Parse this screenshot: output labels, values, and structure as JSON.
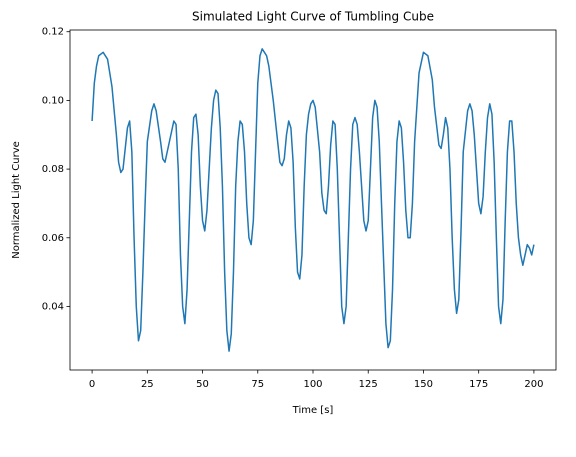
{
  "chart_data": {
    "type": "line",
    "title": "Simulated Light Curve of Tumbling Cube",
    "xlabel": "Time [s]",
    "ylabel": "Normalized Light Curve",
    "color": "#1f77b4",
    "x": [
      0,
      1,
      2,
      3,
      5,
      7,
      9,
      11,
      12,
      13,
      14,
      16,
      17,
      18,
      19,
      20,
      21,
      22,
      23,
      24,
      25,
      27,
      28,
      29,
      31,
      32,
      33,
      35,
      37,
      38,
      39,
      40,
      41,
      42,
      43,
      44,
      45,
      46,
      47,
      48,
      49,
      50,
      51,
      52,
      53,
      54,
      55,
      56,
      57,
      58,
      59,
      60,
      61,
      62,
      63,
      64,
      65,
      66,
      67,
      68,
      69,
      70,
      71,
      72,
      73,
      74,
      75,
      76,
      77,
      78,
      79,
      80,
      82,
      84,
      85,
      86,
      87,
      88,
      89,
      90,
      91,
      92,
      93,
      94,
      95,
      96,
      97,
      98,
      99,
      100,
      101,
      103,
      104,
      105,
      106,
      107,
      108,
      109,
      110,
      111,
      112,
      113,
      114,
      115,
      116,
      117,
      118,
      119,
      120,
      121,
      122,
      123,
      124,
      125,
      126,
      127,
      128,
      129,
      130,
      131,
      133,
      134,
      135,
      136,
      137,
      138,
      139,
      140,
      141,
      142,
      143,
      144,
      145,
      146,
      148,
      150,
      152,
      154,
      155,
      157,
      158,
      159,
      160,
      161,
      162,
      163,
      164,
      165,
      166,
      167,
      168,
      170,
      171,
      172,
      173,
      174,
      175,
      176,
      177,
      178,
      179,
      180,
      181,
      182,
      183,
      184,
      185,
      186,
      187,
      188,
      189,
      190,
      191,
      192,
      193,
      194,
      195,
      196,
      197,
      198,
      199,
      200
    ],
    "values": [
      0.094,
      0.105,
      0.11,
      0.113,
      0.114,
      0.112,
      0.104,
      0.09,
      0.082,
      0.079,
      0.08,
      0.092,
      0.094,
      0.085,
      0.06,
      0.04,
      0.03,
      0.033,
      0.05,
      0.07,
      0.088,
      0.097,
      0.099,
      0.097,
      0.088,
      0.083,
      0.082,
      0.088,
      0.094,
      0.093,
      0.08,
      0.055,
      0.04,
      0.035,
      0.045,
      0.065,
      0.085,
      0.095,
      0.096,
      0.09,
      0.075,
      0.065,
      0.062,
      0.068,
      0.08,
      0.092,
      0.1,
      0.103,
      0.102,
      0.092,
      0.075,
      0.05,
      0.033,
      0.027,
      0.032,
      0.05,
      0.075,
      0.088,
      0.094,
      0.093,
      0.085,
      0.07,
      0.06,
      0.058,
      0.065,
      0.085,
      0.105,
      0.113,
      0.115,
      0.114,
      0.113,
      0.11,
      0.1,
      0.088,
      0.082,
      0.081,
      0.083,
      0.09,
      0.094,
      0.092,
      0.082,
      0.063,
      0.05,
      0.048,
      0.055,
      0.075,
      0.09,
      0.096,
      0.099,
      0.1,
      0.098,
      0.085,
      0.073,
      0.068,
      0.067,
      0.075,
      0.087,
      0.094,
      0.093,
      0.08,
      0.06,
      0.04,
      0.035,
      0.04,
      0.06,
      0.08,
      0.093,
      0.095,
      0.093,
      0.085,
      0.075,
      0.065,
      0.062,
      0.065,
      0.08,
      0.095,
      0.1,
      0.098,
      0.088,
      0.07,
      0.035,
      0.028,
      0.03,
      0.045,
      0.07,
      0.088,
      0.094,
      0.092,
      0.082,
      0.068,
      0.06,
      0.06,
      0.07,
      0.088,
      0.108,
      0.114,
      0.113,
      0.106,
      0.098,
      0.087,
      0.086,
      0.09,
      0.095,
      0.092,
      0.08,
      0.06,
      0.045,
      0.038,
      0.042,
      0.062,
      0.085,
      0.097,
      0.099,
      0.097,
      0.09,
      0.08,
      0.07,
      0.067,
      0.072,
      0.085,
      0.095,
      0.099,
      0.096,
      0.082,
      0.06,
      0.04,
      0.035,
      0.042,
      0.065,
      0.085,
      0.094,
      0.094,
      0.085,
      0.07,
      0.06,
      0.055,
      0.052,
      0.055,
      0.058,
      0.057,
      0.055,
      0.058
    ],
    "xlim": [
      -10,
      210
    ],
    "xticks": [
      0,
      25,
      50,
      75,
      100,
      125,
      150,
      175,
      200
    ],
    "ylim": [
      0.0215,
      0.1205
    ],
    "yticks": [
      {
        "value": 0.04,
        "label": "0.04"
      },
      {
        "value": 0.06,
        "label": "0.06"
      },
      {
        "value": 0.08,
        "label": "0.08"
      },
      {
        "value": 0.1,
        "label": "0.10"
      },
      {
        "value": 0.12,
        "label": "0.12"
      }
    ],
    "grid": false
  }
}
